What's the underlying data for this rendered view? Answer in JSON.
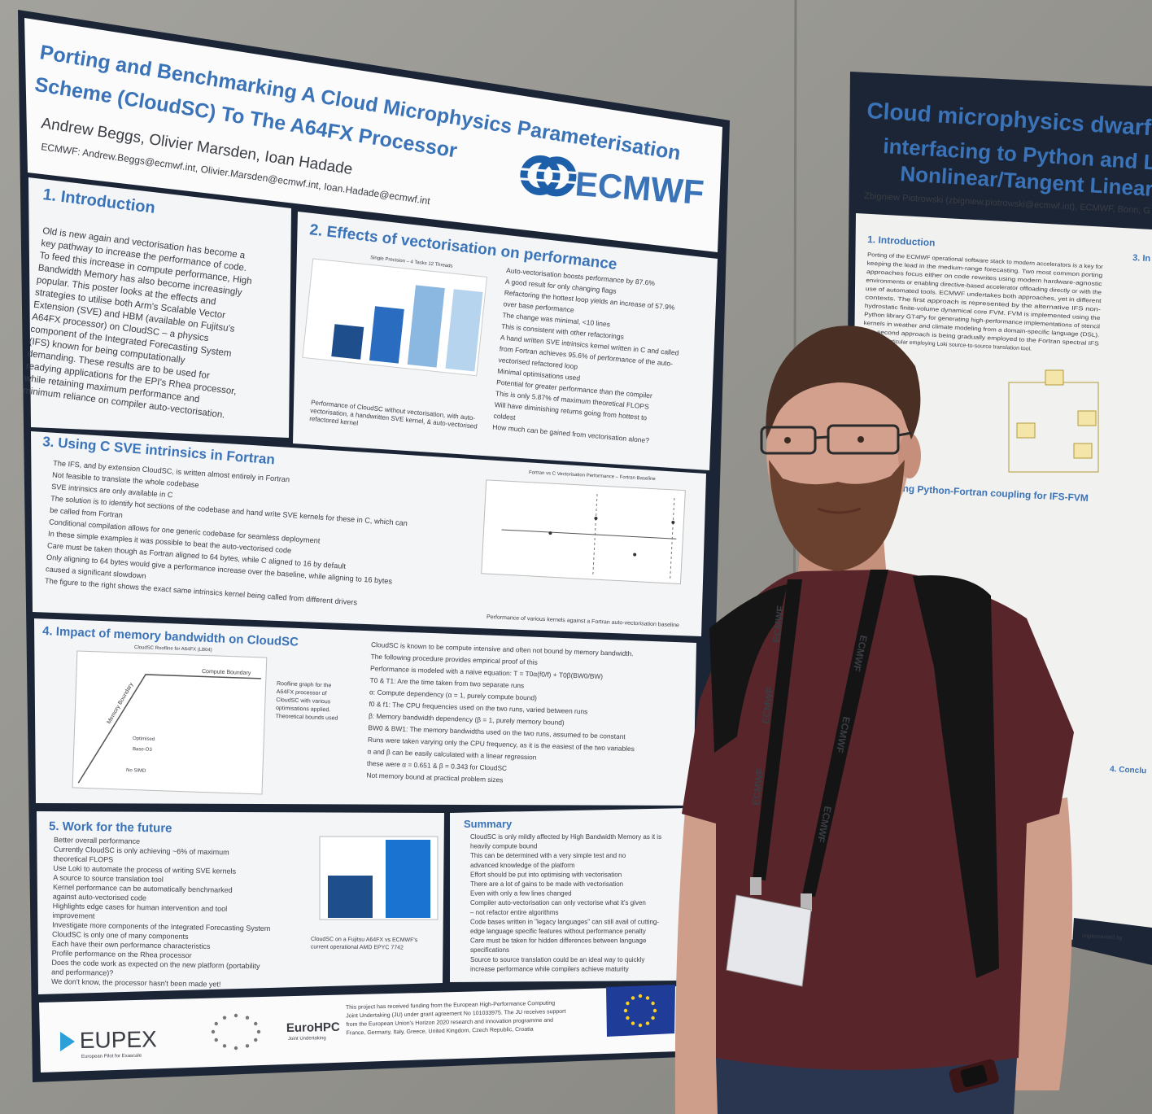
{
  "poster_left": {
    "title_lines": [
      "Porting and Benchmarking A Cloud Microphysics Parameterisation",
      "Scheme (CloudSC) To The A64FX Processor"
    ],
    "authors": "Andrew Beggs, Olivier Marsden, Ioan Hadade",
    "contact": "ECMWF: Andrew.Beggs@ecmwf.int, Olivier.Marsden@ecmwf.int, Ioan.Hadade@ecmwf.int",
    "logo": "ECMWF",
    "introduction": {
      "heading": "1. Introduction",
      "lines": [
        "Old is new again and vectorisation has become a",
        "key pathway to increase the performance of code.",
        "To feed this increase in compute performance, High",
        "Bandwidth Memory has also become increasingly",
        "popular. This poster looks at the effects and",
        "strategies to utilise both Arm's Scalable Vector",
        "Extension (SVE) and HBM (available on Fujitsu's",
        "A64FX processor) on CloudSC – a physics",
        "component of the Integrated Forecasting System",
        "(IFS) known for being computationally",
        "demanding. These results are to be used for",
        "readying applications for the EPI's Rhea processor,",
        "while retaining maximum performance and",
        "minimum reliance on compiler auto-vectorisation."
      ]
    },
    "vectorisation": {
      "heading": "2. Effects of vectorisation on performance",
      "chart_title": "Single Precision – 4 Tasks 12 Threads",
      "caption_lines": [
        "Performance of CloudSC without vectorisation, with auto-",
        "vectorisation, a handwritten SVE kernel, & auto-vectorised",
        "refactored kernel"
      ],
      "bullets": [
        "Auto-vectorisation boosts performance by 87.6%",
        "A good result for only changing flags",
        "Refactoring the hottest loop yields an increase of 57.9%",
        "over base performance",
        "The change was minimal, <10 lines",
        "This is consistent with other refactorings",
        "A hand written SVE intrinsics kernel written in C and called",
        "from Fortran achieves 95.6% of performance of the auto-",
        "vectorised refactored loop",
        "Minimal optimisations used",
        "Potential for greater performance than the compiler",
        "This is only 5.87% of maximum theoretical FLOPS",
        "Will have diminishing returns going from hottest to",
        "coldest",
        "How much can be gained from vectorisation alone?"
      ]
    },
    "sve_intrinsics": {
      "heading": "3. Using C SVE intrinsics in Fortran",
      "lines": [
        "The IFS, and by extension CloudSC, is written almost entirely in Fortran",
        "Not feasible to translate the whole codebase",
        "SVE intrinsics are only available in C",
        "The solution is to identify hot sections of the codebase and hand write SVE kernels for these in C, which can",
        "be called from Fortran",
        "Conditional compilation allows for one generic codebase for seamless deployment",
        "In these simple examples it was possible to beat the auto-vectorised code",
        "Care must be taken though as Fortran aligned to 64 bytes, while C aligned to 16 by default",
        "Only aligning to 64 bytes would give a performance increase over the baseline, while aligning to 16 bytes",
        "caused a significant slowdown",
        "The figure to the right shows the exact same intrinsics kernel being called from different drivers"
      ],
      "chart_title": "Fortran vs C Vectorisation Performance – Fortran Baseline",
      "caption": "Performance of various kernels against a Fortran auto-vectorisation baseline"
    },
    "memory_bandwidth": {
      "heading": "4. Impact of memory bandwidth on CloudSC",
      "chart_title": "CloudSC Roofline for A64FX (LB04)",
      "chart_labels": [
        "Compute Boundary",
        "Memory Boundary",
        "Optimised",
        "Base-O3",
        "No SIMD"
      ],
      "caption_lines": [
        "Roofline graph for the",
        "A64FX processor of",
        "CloudSC with various",
        "optimisations applied.",
        "Theoretical bounds used"
      ],
      "lines": [
        "CloudSC is known to be compute intensive and often not bound by memory bandwidth.",
        "The following procedure provides empirical proof of this",
        "Performance is modeled with a naive equation: T = T0α(f0/f) + T0β(BW0/BW)",
        "T0 & T1: Are the time taken from two separate runs",
        "α: Compute dependency (α = 1, purely compute bound)",
        "f0 & f1: The CPU frequencies used on the two runs, varied between runs",
        "β: Memory bandwidth dependency (β = 1, purely memory bound)",
        "BW0 & BW1: The memory bandwidths used on the two runs, assumed to be constant",
        "Runs were taken varying only the CPU frequency, as it is the easiest of the two variables",
        "α and β can be easily calculated with a linear regression",
        "these were α = 0.651 & β = 0.343 for CloudSC",
        "Not memory bound at practical problem sizes"
      ]
    },
    "future_work": {
      "heading": "5. Work for the future",
      "lines": [
        "Better overall performance",
        "Currently CloudSC is only achieving ~6% of maximum",
        "theoretical FLOPS",
        "Use Loki to automate the process of writing SVE kernels",
        "A source to source translation tool",
        "Kernel performance can be automatically benchmarked",
        "against auto-vectorised code",
        "Highlights edge cases for human intervention and tool",
        "improvement",
        "Investigate more components of the Integrated Forecasting System",
        "CloudSC is only one of many components",
        "Each have their own performance characteristics",
        "Profile performance on the Rhea processor",
        "Does the code work as expected on the new platform (portability",
        "and performance)?",
        "We don't know, the processor hasn't been made yet!"
      ],
      "caption_lines": [
        "CloudSC on a Fujitsu A64FX vs ECMWF's",
        "current operational AMD EPYC 7742"
      ]
    },
    "summary": {
      "heading": "Summary",
      "lines": [
        "CloudSC is only mildly affected by High Bandwidth Memory as it is",
        "heavily compute bound",
        "This can be determined with a very simple test and no",
        "advanced knowledge of the platform",
        "Effort should be put into optimising with vectorisation",
        "There are a lot of gains to be made with vectorisation",
        "Even with only a few lines changed",
        "Compiler auto-vectorisation can only vectorise what it's given",
        "– not refactor entire algorithms",
        "Code bases written in \"legacy languages\" can still avail of cutting-",
        "edge language specific features without performance penalty",
        "Care must be taken for hidden differences between language",
        "specifications",
        "Source to source translation could be an ideal way to quickly",
        "increase performance while compilers achieve maturity"
      ]
    },
    "footer": {
      "eupex": "EUPEX",
      "eupex_tagline": "European Pilot for Exascale",
      "eurohpc": "EuroHPC",
      "eurohpc_tagline": "Joint Undertaking",
      "funding_lines": [
        "This project has received funding from the European High-Performance Computing",
        "Joint Undertaking (JU) under grant agreement No 101033975. The JU receives support",
        "from the European Union's Horizon 2020 research and innovation programme and",
        "France, Germany, Italy, Greece, United Kingdom, Czech Republic, Croatia"
      ]
    }
  },
  "poster_right": {
    "title_lines": [
      "Cloud microphysics dwarf ex",
      "interfacing to Python and Loki",
      "Nonlinear/Tangent Linear/Ad"
    ],
    "author": "Zbigniew Piotrowski (zbigniew.piotrowski@ecmwf.int), ECMWF, Bonn, G",
    "intro_heading": "1. Introduction",
    "intro_lines": [
      "Porting of the ECMWF operational software stack to modern accelerators is a key for",
      "keeping the lead in the medium-range forecasting. Two most common porting",
      "approaches focus either on code rewrites using modern hardware-agnostic",
      "environments or enabling directive-based accelerator offloading directly or with the",
      "use of automated tools. ECMWF undertakes both approaches, yet in different",
      "contexts. The first approach is represented by the alternative IFS non-",
      "hydrostatic finite-volume dynamical core FVM. FVM is implemented using the",
      "Python library GT4Py for generating high-performance implementations of stencil",
      "kernels in weather and climate modeling from a domain-specific language (DSL).",
      "The second approach is being gradually employed to the Fortran spectral IFS",
      "code, in particular employing Loki source-to-source translation tool."
    ],
    "column_heading": "3. In",
    "coupling_heading": "ing Python-Fortran coupling for IFS-FVM",
    "conclusion_heading": "4. Conclu",
    "footer": "implemented by"
  },
  "lanyard_text": "ECMWF"
}
